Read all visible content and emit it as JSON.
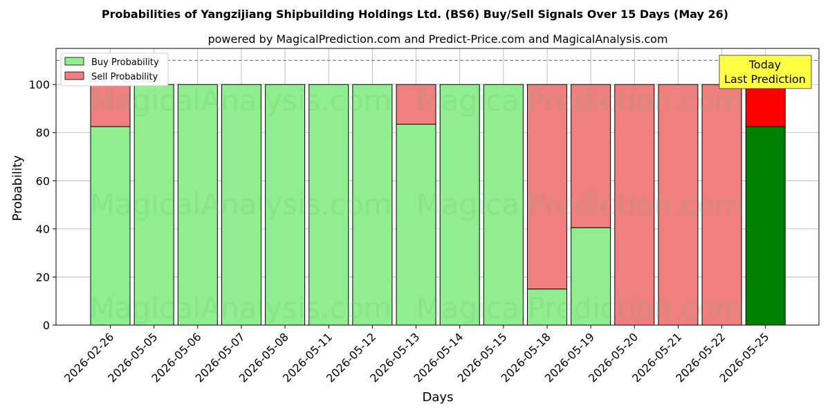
{
  "chart_data": {
    "type": "bar",
    "stacked": true,
    "title": "Probabilities of Yangzijiang Shipbuilding Holdings Ltd. (BS6) Buy/Sell Signals Over 15 Days (May 26)",
    "subtitle": "powered by MagicalPrediction.com and Predict-Price.com and MagicalAnalysis.com",
    "xlabel": "Days",
    "ylabel": "Probability",
    "ylim": [
      0,
      115
    ],
    "yticks": [
      0,
      20,
      40,
      60,
      80,
      100
    ],
    "reference_line": 110,
    "grid": true,
    "legend_position": "top-left",
    "categories": [
      "2026-02-26",
      "2026-05-05",
      "2026-05-06",
      "2026-05-07",
      "2026-05-08",
      "2026-05-11",
      "2026-05-12",
      "2026-05-13",
      "2026-05-14",
      "2026-05-15",
      "2026-05-18",
      "2026-05-19",
      "2026-05-20",
      "2026-05-21",
      "2026-05-22",
      "2026-05-25"
    ],
    "series": [
      {
        "name": "Buy Probability",
        "color": "#90ee90",
        "values": [
          82.5,
          100,
          100,
          100,
          100,
          100,
          100,
          83.5,
          100,
          100,
          15,
          40.5,
          0,
          0,
          0,
          82.5
        ]
      },
      {
        "name": "Sell Probability",
        "color": "#f08080",
        "values": [
          17.5,
          0,
          0,
          0,
          0,
          0,
          0,
          16.5,
          0,
          0,
          85,
          59.5,
          100,
          100,
          100,
          17.5
        ]
      }
    ],
    "highlight": {
      "index": 15,
      "buy_color": "#008000",
      "sell_color": "#ff0000"
    },
    "annotation": {
      "line1": "Today",
      "line2": "Last Prediction",
      "color": "#ffff44"
    },
    "watermarks": [
      "MagicalAnalysis.com",
      "MagicalPrediction.com"
    ]
  }
}
